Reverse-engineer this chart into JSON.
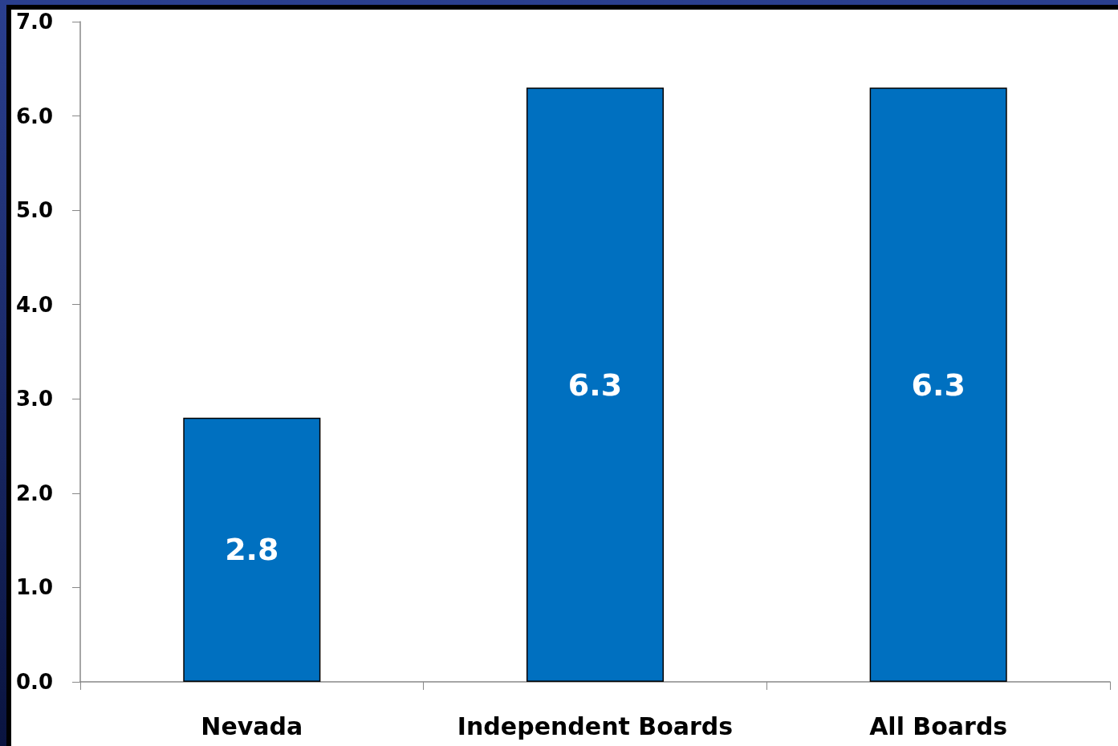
{
  "chart_data": {
    "type": "bar",
    "categories": [
      "Nevada",
      "Independent Boards",
      "All Boards"
    ],
    "values": [
      2.8,
      6.3,
      6.3
    ],
    "color": "#0070c0",
    "ylim": [
      0,
      7
    ],
    "yticks": [
      {
        "value": 0,
        "label": "0.0"
      },
      {
        "value": 1,
        "label": "1.0"
      },
      {
        "value": 2,
        "label": "2.0"
      },
      {
        "value": 3,
        "label": "3.0"
      },
      {
        "value": 4,
        "label": "4.0"
      },
      {
        "value": 5,
        "label": "5.0"
      },
      {
        "value": 6,
        "label": "6.0"
      },
      {
        "value": 7,
        "label": "7.0"
      }
    ],
    "data_labels": true,
    "grid": false
  }
}
